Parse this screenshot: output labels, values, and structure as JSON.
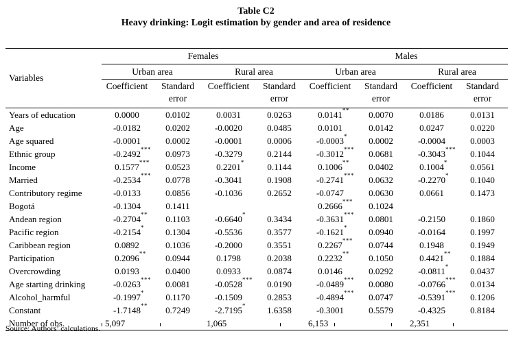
{
  "page": {
    "title": "Table C2",
    "subtitle": "Heavy drinking: Logit estimation by gender and area of residence",
    "source": "Source: Authors’ calculations."
  },
  "header": {
    "variables_label": "Variables",
    "gender_groups": [
      "Females",
      "Males"
    ],
    "area_groups": [
      "Urban area",
      "Rural area",
      "Urban area",
      "Rural area"
    ],
    "coefficient_label": "Coefficient",
    "standard_error_label": "Standard error"
  },
  "rows": [
    {
      "variable": "Years of education",
      "cells": [
        [
          "0.0000",
          ""
        ],
        [
          "0.0102",
          ""
        ],
        [
          "0.0031",
          ""
        ],
        [
          "0.0263",
          ""
        ],
        [
          "0.0141",
          "**"
        ],
        [
          "0.0070",
          ""
        ],
        [
          "0.0186",
          ""
        ],
        [
          "0.0131",
          ""
        ]
      ]
    },
    {
      "variable": "Age",
      "cells": [
        [
          "-0.0182",
          ""
        ],
        [
          "0.0202",
          ""
        ],
        [
          "-0.0020",
          ""
        ],
        [
          "0.0485",
          ""
        ],
        [
          "0.0101",
          ""
        ],
        [
          "0.0142",
          ""
        ],
        [
          "0.0247",
          ""
        ],
        [
          "0.0220",
          ""
        ]
      ]
    },
    {
      "variable": "Age squared",
      "cells": [
        [
          "-0.0001",
          ""
        ],
        [
          "0.0002",
          ""
        ],
        [
          "-0.0001",
          ""
        ],
        [
          "0.0006",
          ""
        ],
        [
          "-0.0003",
          "*"
        ],
        [
          "0.0002",
          ""
        ],
        [
          "-0.0004",
          ""
        ],
        [
          "0.0003",
          ""
        ]
      ]
    },
    {
      "variable": "Ethnic group",
      "cells": [
        [
          "-0.2492",
          "***"
        ],
        [
          "0.0973",
          ""
        ],
        [
          "-0.3279",
          ""
        ],
        [
          "0.2144",
          ""
        ],
        [
          "-0.3012",
          "***"
        ],
        [
          "0.0681",
          ""
        ],
        [
          "-0.3043",
          "***"
        ],
        [
          "0.1044",
          ""
        ]
      ]
    },
    {
      "variable": "Income",
      "cells": [
        [
          "0.1577",
          "***"
        ],
        [
          "0.0523",
          ""
        ],
        [
          "0.2201",
          "*"
        ],
        [
          "0.1144",
          ""
        ],
        [
          "0.1006",
          "**"
        ],
        [
          "0.0402",
          ""
        ],
        [
          "0.1004",
          "*"
        ],
        [
          "0.0561",
          ""
        ]
      ]
    },
    {
      "variable": "Married",
      "cells": [
        [
          "-0.2534",
          "***"
        ],
        [
          "0.0778",
          ""
        ],
        [
          "-0.3041",
          ""
        ],
        [
          "0.1908",
          ""
        ],
        [
          "-0.2741",
          "***"
        ],
        [
          "0.0632",
          ""
        ],
        [
          "-0.2270",
          "*"
        ],
        [
          "0.1040",
          ""
        ]
      ]
    },
    {
      "variable": "Contributory regime",
      "cells": [
        [
          "-0.0133",
          ""
        ],
        [
          "0.0856",
          ""
        ],
        [
          "-0.1036",
          ""
        ],
        [
          "0.2652",
          ""
        ],
        [
          "-0.0747",
          ""
        ],
        [
          "0.0630",
          ""
        ],
        [
          "0.0661",
          ""
        ],
        [
          "0.1473",
          ""
        ]
      ]
    },
    {
      "variable": "Bogotá",
      "cells": [
        [
          "-0.1304",
          ""
        ],
        [
          "0.1411",
          ""
        ],
        [
          "",
          ""
        ],
        [
          "",
          ""
        ],
        [
          "0.2666",
          "***"
        ],
        [
          "0.1024",
          ""
        ],
        [
          "",
          ""
        ],
        [
          "",
          ""
        ]
      ]
    },
    {
      "variable": "Andean region",
      "cells": [
        [
          "-0.2704",
          "**"
        ],
        [
          "0.1103",
          ""
        ],
        [
          "-0.6640",
          "*"
        ],
        [
          "0.3434",
          ""
        ],
        [
          "-0.3631",
          "***"
        ],
        [
          "0.0801",
          ""
        ],
        [
          "-0.2150",
          ""
        ],
        [
          "0.1860",
          ""
        ]
      ]
    },
    {
      "variable": "Pacific region",
      "cells": [
        [
          "-0.2154",
          "*"
        ],
        [
          "0.1304",
          ""
        ],
        [
          "-0.5536",
          ""
        ],
        [
          "0.3577",
          ""
        ],
        [
          "-0.1621",
          "*"
        ],
        [
          "0.0940",
          ""
        ],
        [
          "-0.0164",
          ""
        ],
        [
          "0.1997",
          ""
        ]
      ]
    },
    {
      "variable": "Caribbean region",
      "cells": [
        [
          "0.0892",
          ""
        ],
        [
          "0.1036",
          ""
        ],
        [
          "-0.2000",
          ""
        ],
        [
          "0.3551",
          ""
        ],
        [
          "0.2267",
          "***"
        ],
        [
          "0.0744",
          ""
        ],
        [
          "0.1948",
          ""
        ],
        [
          "0.1949",
          ""
        ]
      ]
    },
    {
      "variable": "Participation",
      "cells": [
        [
          "0.2096",
          "**"
        ],
        [
          "0.0944",
          ""
        ],
        [
          "0.1798",
          ""
        ],
        [
          "0.2038",
          ""
        ],
        [
          "0.2232",
          "**"
        ],
        [
          "0.1050",
          ""
        ],
        [
          "0.4421",
          "**"
        ],
        [
          "0.1884",
          ""
        ]
      ]
    },
    {
      "variable": "Overcrowding",
      "cells": [
        [
          "0.0193",
          ""
        ],
        [
          "0.0400",
          ""
        ],
        [
          "0.0933",
          ""
        ],
        [
          "0.0874",
          ""
        ],
        [
          "0.0146",
          ""
        ],
        [
          "0.0292",
          ""
        ],
        [
          "-0.0811",
          "*"
        ],
        [
          "0.0437",
          ""
        ]
      ]
    },
    {
      "variable": "Age starting drinking",
      "cells": [
        [
          "-0.0263",
          "***"
        ],
        [
          "0.0081",
          ""
        ],
        [
          "-0.0528",
          "***"
        ],
        [
          "0.0190",
          ""
        ],
        [
          "-0.0489",
          "***"
        ],
        [
          "0.0080",
          ""
        ],
        [
          "-0.0766",
          "***"
        ],
        [
          "0.0134",
          ""
        ]
      ]
    },
    {
      "variable": "Alcohol_harmful",
      "cells": [
        [
          "-0.1997",
          "*"
        ],
        [
          "0.1170",
          ""
        ],
        [
          "-0.1509",
          ""
        ],
        [
          "0.2853",
          ""
        ],
        [
          "-0.4894",
          "***"
        ],
        [
          "0.0747",
          ""
        ],
        [
          "-0.5391",
          "***"
        ],
        [
          "0.1206",
          ""
        ]
      ]
    },
    {
      "variable": "Constant",
      "cells": [
        [
          "-1.7148",
          "**"
        ],
        [
          "0.7249",
          ""
        ],
        [
          "-2.7195",
          "*"
        ],
        [
          "1.6358",
          ""
        ],
        [
          "-0.3001",
          ""
        ],
        [
          "0.5579",
          ""
        ],
        [
          "-0.4325",
          ""
        ],
        [
          "0.8184",
          ""
        ]
      ]
    }
  ],
  "obs_row": {
    "label": "Number of obs.",
    "values": [
      "5,097",
      "",
      "1,065",
      "",
      "6,153",
      "",
      "2,351",
      ""
    ]
  }
}
